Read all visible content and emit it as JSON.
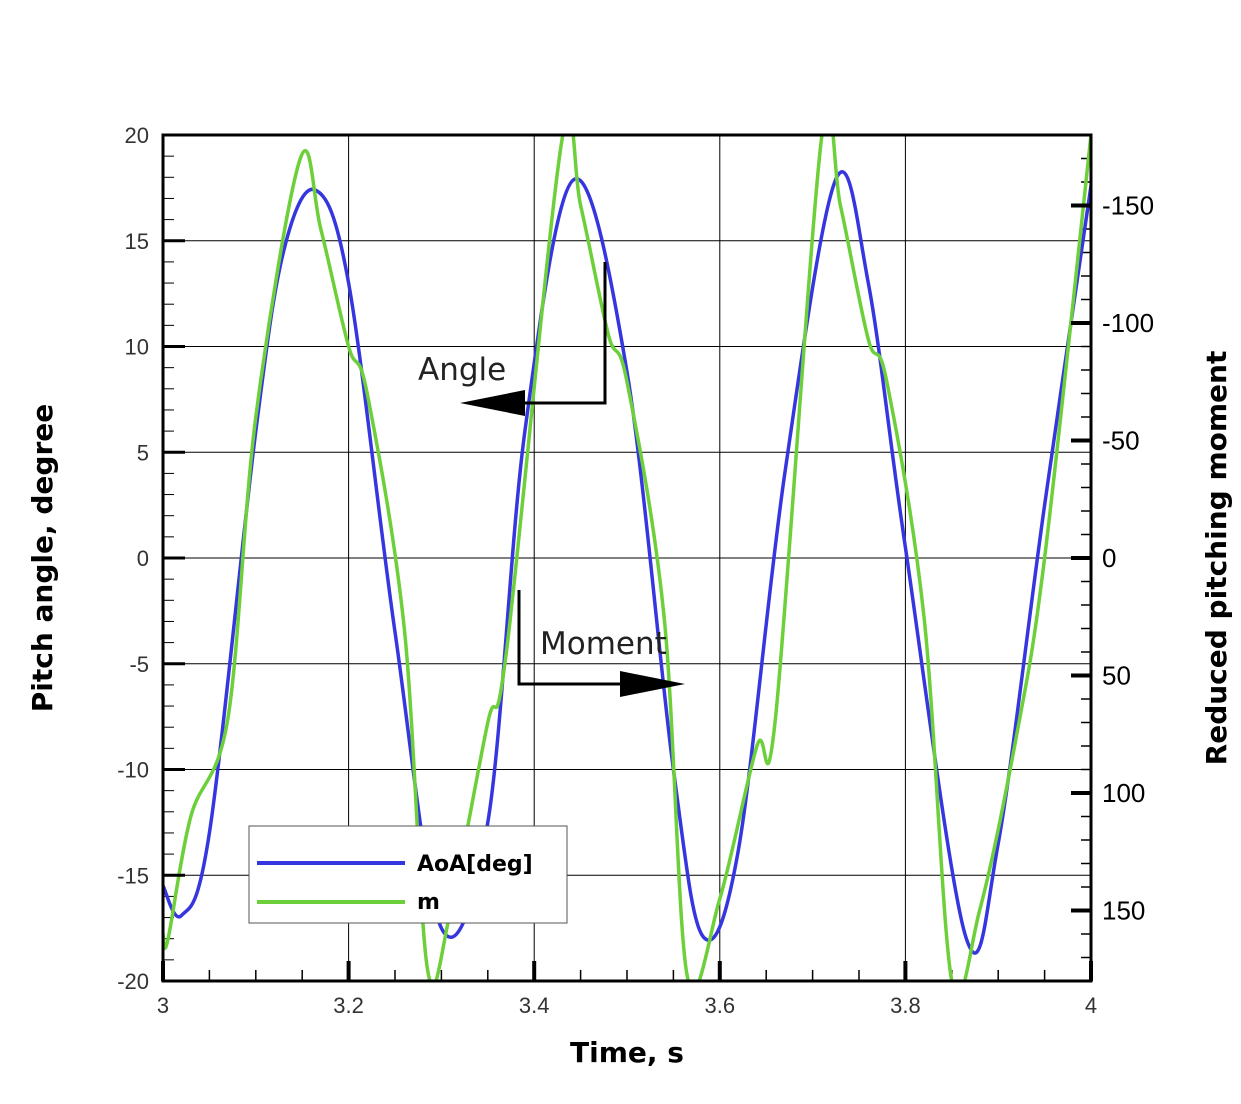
{
  "chart_data": {
    "type": "line",
    "xlabel": "Time, s",
    "ylabel": "Pitch angle,  degree",
    "y2label": "Reduced pitching moment",
    "xlim": [
      3,
      4
    ],
    "ylim": [
      -20,
      20
    ],
    "y2lim": [
      180,
      -180
    ],
    "y2_inverted": true,
    "grid": true,
    "legend_position": "bottom-left",
    "x_ticks": [
      "3",
      "3.2",
      "3.4",
      "3.6",
      "3.8",
      "4"
    ],
    "y_ticks": [
      "20",
      "15",
      "10",
      "5",
      "0",
      "-5",
      "-10",
      "-15",
      "-20"
    ],
    "y2_ticks": [
      "-150",
      "-100",
      "-50",
      "0",
      "50",
      "100",
      "150"
    ],
    "annotations": [
      {
        "text": "Angle",
        "arrow": "left",
        "points_to_axis": "left"
      },
      {
        "text": "Moment",
        "arrow": "right",
        "points_to_axis": "right"
      }
    ],
    "series": [
      {
        "name": "AoA[deg]",
        "axis": "left",
        "color": "#3636e0",
        "x": [
          3.0,
          3.02,
          3.05,
          3.1,
          3.13,
          3.164,
          3.2,
          3.25,
          3.3,
          3.35,
          3.39,
          3.443,
          3.5,
          3.55,
          3.582,
          3.62,
          3.67,
          3.725,
          3.76,
          3.8,
          3.865,
          3.9,
          3.95,
          4.0
        ],
        "y": [
          -15.5,
          -16.9,
          -13.0,
          6.0,
          14.5,
          17.4,
          13.0,
          -3.5,
          -17.5,
          -12.5,
          6.0,
          17.9,
          8.8,
          -10.0,
          -17.9,
          -13.8,
          4.0,
          17.9,
          13.0,
          0.5,
          -17.9,
          -13.5,
          2.5,
          17.6
        ]
      },
      {
        "name": "m",
        "axis": "right",
        "color": "#6dd03a",
        "x": [
          3.0,
          3.005,
          3.03,
          3.07,
          3.1,
          3.148,
          3.17,
          3.2,
          3.22,
          3.26,
          3.285,
          3.31,
          3.35,
          3.37,
          3.43,
          3.45,
          3.48,
          3.5,
          3.54,
          3.565,
          3.6,
          3.64,
          3.66,
          3.71,
          3.73,
          3.76,
          3.78,
          3.82,
          3.85,
          3.88,
          3.92,
          3.95,
          4.0
        ],
        "y": [
          160,
          163,
          110,
          68,
          -60,
          -170,
          -140,
          -90,
          -70,
          30,
          175,
          150,
          70,
          40,
          -178,
          -150,
          -95,
          -75,
          25,
          178,
          145,
          80,
          68,
          -180,
          -150,
          -93,
          -75,
          25,
          180,
          150,
          75,
          0,
          -180
        ]
      }
    ]
  }
}
